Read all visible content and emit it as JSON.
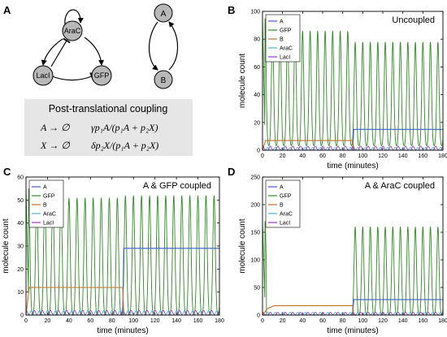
{
  "panels": {
    "a": {
      "letter": "A"
    },
    "b": {
      "letter": "B"
    },
    "c": {
      "letter": "C"
    },
    "d": {
      "letter": "D"
    }
  },
  "network": {
    "nodes": [
      "AraC",
      "LacI",
      "GFP"
    ],
    "pair": [
      "A",
      "B"
    ],
    "node_fill": "#b8b8b8"
  },
  "coupling_box": {
    "title": "Post-translational coupling",
    "reaction1_lhs": "A → ∅",
    "reaction1_rate": "γp₁A/(p₁A + p₂X)",
    "reaction2_lhs": "X → ∅",
    "reaction2_rate": "δp₂X/(p₁A + p₂X)",
    "background": "#e6e6e6"
  },
  "series_colors": {
    "A": "#3a5fcd",
    "GFP": "#2e8b22",
    "B": "#c0702a",
    "AraC": "#48b8c8",
    "LacI": "#9b3ac4"
  },
  "chart_data": [
    {
      "panel": "B",
      "type": "line",
      "annotation": "Uncoupled",
      "xlabel": "time (minutes)",
      "ylabel": "molecule count",
      "xlim": [
        0,
        180
      ],
      "ylim": [
        0,
        100
      ],
      "xticks": [
        "0",
        "20",
        "40",
        "60",
        "80",
        "100",
        "120",
        "140",
        "160",
        "180"
      ],
      "yticks": [
        "0",
        "20",
        "40",
        "60",
        "80",
        "100"
      ],
      "legend": [
        "A",
        "GFP",
        "B",
        "AraC",
        "LacI"
      ],
      "legend_position": "top-left",
      "oscillation": {
        "period_min": 7.5,
        "gfp_initial_peak": 95,
        "gfp_peak_before_90": 86,
        "gfp_peak_after_90": 78,
        "gfp_trough": 3,
        "arac_peak": 2,
        "laci_peak": 3
      },
      "series": [
        {
          "name": "A",
          "values": [
            [
              0,
              0
            ],
            [
              90,
              0
            ],
            [
              91,
              15
            ],
            [
              180,
              15
            ]
          ]
        },
        {
          "name": "B",
          "values": [
            [
              0,
              0
            ],
            [
              3,
              7
            ],
            [
              90,
              7
            ],
            [
              91,
              0
            ],
            [
              180,
              0
            ]
          ]
        },
        {
          "name": "GFP",
          "values": "oscillatory"
        },
        {
          "name": "AraC",
          "values": "oscillatory"
        },
        {
          "name": "LacI",
          "values": "oscillatory"
        }
      ]
    },
    {
      "panel": "C",
      "type": "line",
      "annotation": "A & GFP coupled",
      "xlabel": "time (minutes)",
      "ylabel": "molecule count",
      "xlim": [
        0,
        180
      ],
      "ylim": [
        0,
        60
      ],
      "xticks": [
        "0",
        "20",
        "40",
        "60",
        "80",
        "100",
        "120",
        "140",
        "160",
        "180"
      ],
      "yticks": [
        "0",
        "10",
        "20",
        "30",
        "40",
        "50",
        "60"
      ],
      "legend": [
        "A",
        "GFP",
        "B",
        "AraC",
        "LacI"
      ],
      "legend_position": "top-left",
      "oscillation": {
        "period_min": 7.5,
        "gfp_initial_peak": 55,
        "gfp_peak_before_90": 51,
        "gfp_peak_after_90": 52,
        "gfp_trough": 0,
        "arac_peak": 2,
        "laci_peak": 2
      },
      "series": [
        {
          "name": "A",
          "values": [
            [
              0,
              0
            ],
            [
              90,
              0
            ],
            [
              91,
              29
            ],
            [
              180,
              29
            ]
          ]
        },
        {
          "name": "B",
          "values": [
            [
              0,
              0
            ],
            [
              3,
              12
            ],
            [
              90,
              12
            ],
            [
              91,
              0
            ],
            [
              180,
              0
            ]
          ]
        },
        {
          "name": "GFP",
          "values": "oscillatory"
        },
        {
          "name": "AraC",
          "values": "oscillatory"
        },
        {
          "name": "LacI",
          "values": "oscillatory"
        }
      ]
    },
    {
      "panel": "D",
      "type": "line",
      "annotation": "A & AraC coupled",
      "xlabel": "time (minutes)",
      "ylabel": "molecule count",
      "xlim": [
        0,
        180
      ],
      "ylim": [
        0,
        250
      ],
      "xticks": [
        "0",
        "20",
        "40",
        "60",
        "80",
        "100",
        "120",
        "140",
        "160",
        "180"
      ],
      "yticks": [
        "0",
        "50",
        "100",
        "150",
        "200",
        "250"
      ],
      "legend": [
        "A",
        "GFP",
        "B",
        "AraC",
        "LacI"
      ],
      "legend_position": "top-left",
      "oscillation": {
        "period_min": 7.5,
        "gfp_initial_peak": 170,
        "gfp_peak_before_90": 0,
        "gfp_peak_after_90": 160,
        "gfp_trough": 0,
        "arac_peak": 5,
        "laci_peak": 5
      },
      "series": [
        {
          "name": "A",
          "values": [
            [
              0,
              0
            ],
            [
              90,
              0
            ],
            [
              91,
              28
            ],
            [
              180,
              28
            ]
          ]
        },
        {
          "name": "B",
          "values": [
            [
              0,
              0
            ],
            [
              5,
              12
            ],
            [
              12,
              17
            ],
            [
              90,
              17
            ],
            [
              91,
              0
            ],
            [
              180,
              0
            ]
          ]
        },
        {
          "name": "GFP",
          "values": "oscillatory"
        },
        {
          "name": "AraC",
          "values": "oscillatory"
        },
        {
          "name": "LacI",
          "values": "oscillatory"
        }
      ]
    }
  ]
}
